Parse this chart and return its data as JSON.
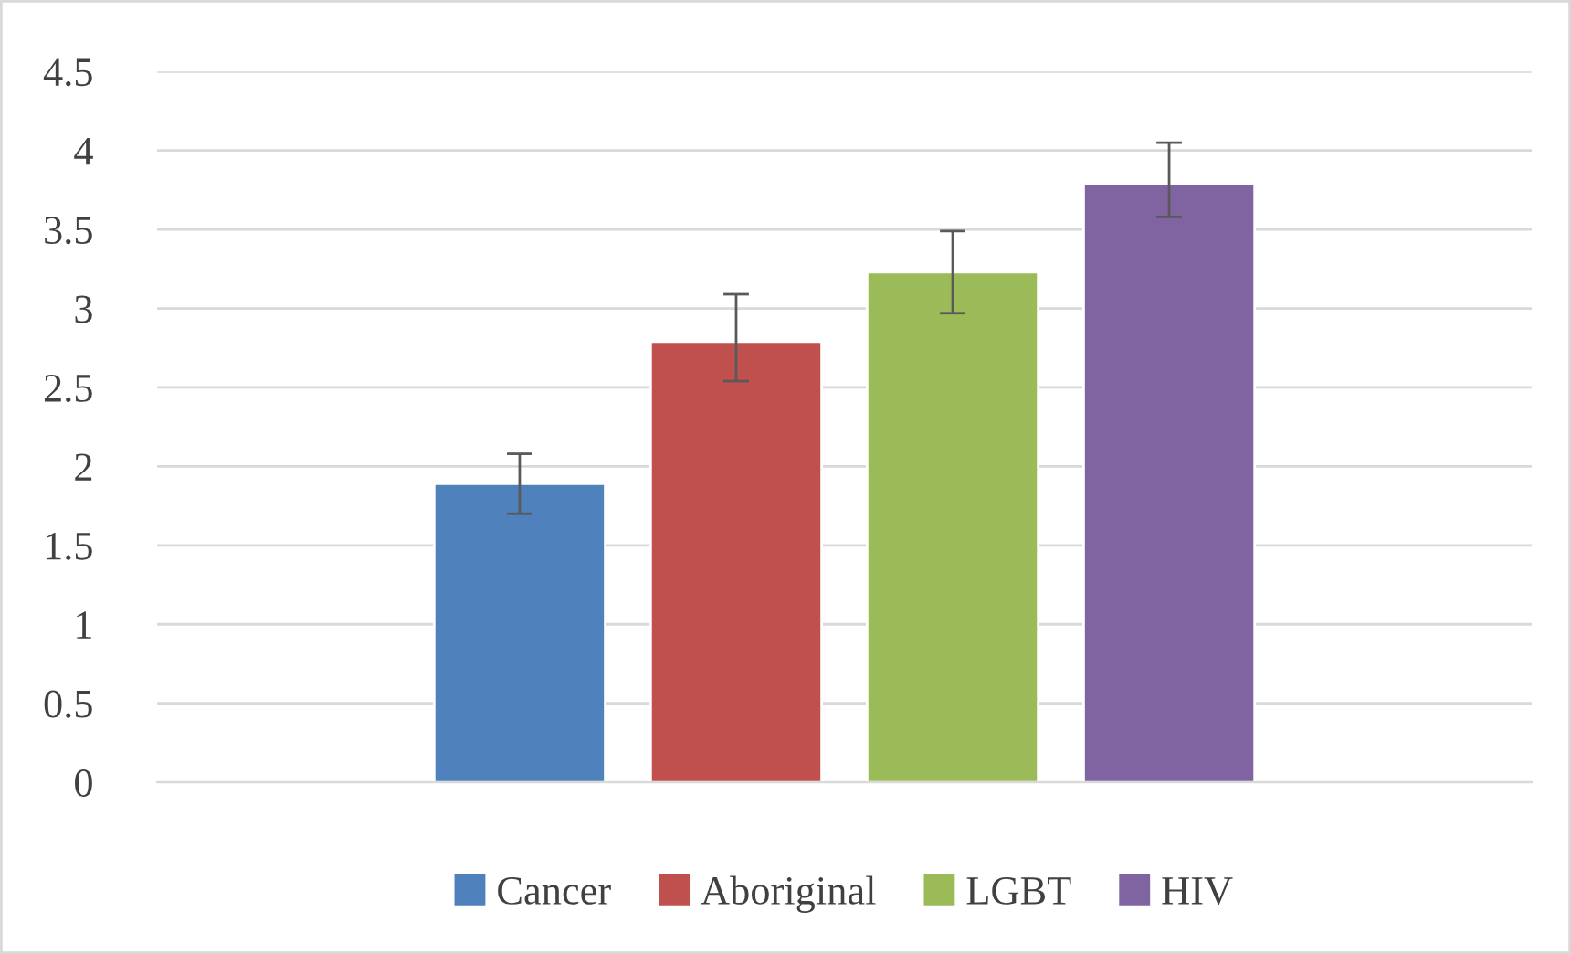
{
  "chart_data": {
    "type": "bar",
    "categories": [
      null
    ],
    "series": [
      {
        "name": "Cancer",
        "color": "#4f81bd",
        "values": [
          1.89
        ],
        "errors": [
          [
            1.7,
            2.08
          ]
        ]
      },
      {
        "name": "Aboriginal",
        "color": "#c0504d",
        "values": [
          2.79
        ],
        "errors": [
          [
            2.54,
            3.09
          ]
        ]
      },
      {
        "name": "LGBT",
        "color": "#9bbb59",
        "values": [
          3.23
        ],
        "errors": [
          [
            2.97,
            3.49
          ]
        ]
      },
      {
        "name": "HIV",
        "color": "#8064a2",
        "values": [
          3.79
        ],
        "errors": [
          [
            3.58,
            4.05
          ]
        ]
      }
    ],
    "ylim": [
      0,
      4.5
    ],
    "yticks": [
      0,
      0.5,
      1,
      1.5,
      2,
      2.5,
      3,
      3.5,
      4,
      4.5
    ],
    "grid": "y",
    "legend": "bottom"
  }
}
